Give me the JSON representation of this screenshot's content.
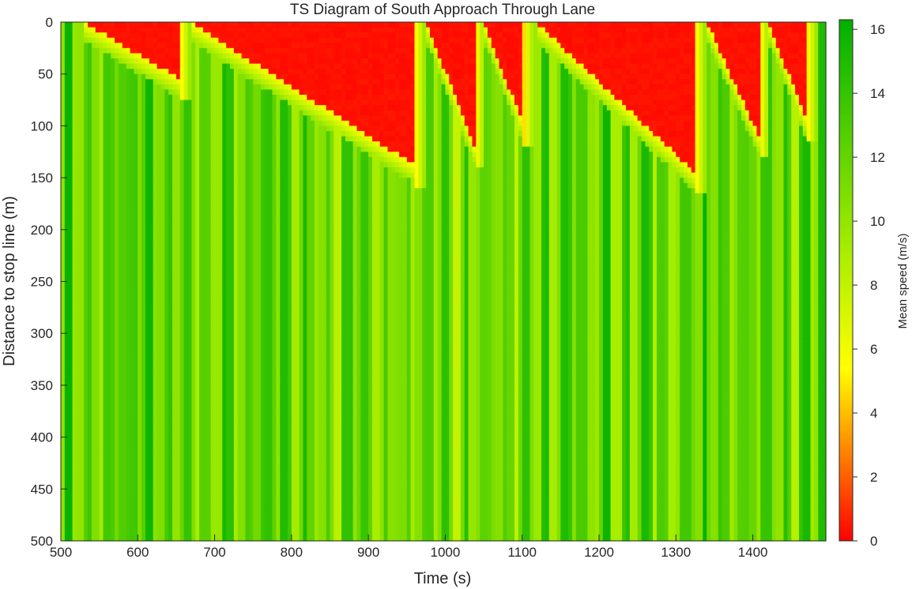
{
  "chart_data": {
    "type": "heatmap",
    "title": "TS Diagram of South Approach Through Lane",
    "xlabel": "Time (s)",
    "ylabel": "Distance to stop line (m)",
    "colorbar_label": "Mean speed (m/s)",
    "xlim": [
      500,
      1495
    ],
    "ylim": [
      0,
      500
    ],
    "y_reversed": true,
    "clim": [
      0,
      16.3
    ],
    "colormap": [
      "#ff0000",
      "#ffff00",
      "#00b000"
    ],
    "x_ticks": [
      500,
      600,
      700,
      800,
      900,
      1000,
      1100,
      1200,
      1300,
      1400
    ],
    "y_ticks": [
      0,
      50,
      100,
      150,
      200,
      250,
      300,
      350,
      400,
      450,
      500
    ],
    "cb_ticks": [
      0,
      2,
      4,
      6,
      8,
      10,
      12,
      14,
      16
    ],
    "queue_fronts": [
      {
        "red_start": 530,
        "discharge": 655,
        "queue_tail_m": 55
      },
      {
        "red_start": 668,
        "discharge": 960,
        "queue_tail_m": 138
      },
      {
        "red_start": 975,
        "discharge": 1038,
        "queue_tail_m": 120
      },
      {
        "red_start": 1050,
        "discharge": 1102,
        "queue_tail_m": 100
      },
      {
        "red_start": 1118,
        "discharge": 1325,
        "queue_tail_m": 145
      },
      {
        "red_start": 1340,
        "discharge": 1408,
        "queue_tail_m": 110
      },
      {
        "red_start": 1420,
        "discharge": 1470,
        "queue_tail_m": 95
      }
    ],
    "background_speed_range": [
      9,
      15
    ],
    "grid": false
  }
}
